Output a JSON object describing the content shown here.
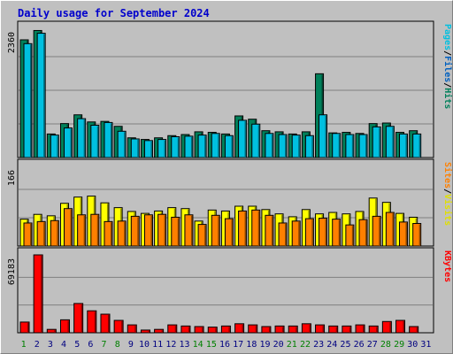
{
  "title": "Daily usage for September 2024",
  "chart_data": [
    {
      "type": "bar",
      "panel": "hits-files-pages",
      "ymax_label": "2360",
      "ymax": 2360,
      "right_label": [
        "Pages",
        "/",
        "Files",
        "/",
        "Hits"
      ],
      "right_label_colors": [
        "#00c0e0",
        "#000000",
        "#0060c0",
        "#000000",
        "#00805a"
      ],
      "series": [
        {
          "name": "Hits",
          "color": "#00805a",
          "values": [
            2150,
            2320,
            430,
            620,
            780,
            650,
            660,
            570,
            360,
            330,
            360,
            400,
            420,
            470,
            460,
            430,
            760,
            700,
            490,
            470,
            430,
            470,
            1530,
            450,
            460,
            440,
            620,
            630,
            460,
            490
          ]
        },
        {
          "name": "Files",
          "color": "#00c0e0",
          "values": [
            2080,
            2270,
            410,
            540,
            710,
            590,
            640,
            480,
            340,
            310,
            330,
            380,
            390,
            410,
            440,
            400,
            680,
            610,
            440,
            420,
            410,
            400,
            780,
            440,
            420,
            420,
            560,
            570,
            430,
            430
          ]
        },
        {
          "name": "Pages",
          "color": "#00c0e0",
          "values": []
        }
      ]
    },
    {
      "type": "bar",
      "panel": "visits-sites",
      "ymax_label": "166",
      "ymax": 166,
      "right_label": [
        "Sites",
        "/",
        "Visits"
      ],
      "right_label_colors": [
        "#ff8000",
        "#000000",
        "#e0e000"
      ],
      "series": [
        {
          "name": "Visits",
          "color": "#ffff00",
          "values": [
            56,
            66,
            63,
            89,
            102,
            104,
            90,
            80,
            72,
            68,
            73,
            80,
            78,
            52,
            75,
            73,
            83,
            83,
            76,
            67,
            61,
            76,
            67,
            70,
            67,
            72,
            100,
            91,
            68,
            60
          ]
        },
        {
          "name": "Sites",
          "color": "#ff8000",
          "values": [
            48,
            51,
            53,
            78,
            65,
            66,
            51,
            52,
            62,
            65,
            66,
            60,
            65,
            45,
            64,
            57,
            73,
            75,
            64,
            48,
            52,
            57,
            58,
            56,
            44,
            55,
            62,
            70,
            50,
            47
          ]
        }
      ]
    },
    {
      "type": "bar",
      "panel": "kbytes",
      "ymax_label": "69183",
      "ymax": 69183,
      "right_label": [
        "KBytes"
      ],
      "right_label_colors": [
        "#ff0000"
      ],
      "series": [
        {
          "name": "KBytes",
          "color": "#ff0000",
          "values": [
            9500,
            69183,
            3000,
            11500,
            26000,
            19500,
            16500,
            11000,
            7000,
            2400,
            3000,
            7000,
            6000,
            5500,
            5000,
            6000,
            8000,
            7000,
            5500,
            6000,
            6000,
            8000,
            7000,
            6000,
            6000,
            7000,
            6000,
            10000,
            11000,
            5500
          ]
        }
      ]
    }
  ],
  "x_labels": [
    "1",
    "2",
    "3",
    "4",
    "5",
    "6",
    "7",
    "8",
    "9",
    "10",
    "11",
    "12",
    "13",
    "14",
    "15",
    "16",
    "17",
    "18",
    "19",
    "20",
    "21",
    "22",
    "23",
    "24",
    "25",
    "26",
    "27",
    "28",
    "29",
    "30",
    "31"
  ],
  "x_label_colors": [
    "#008000",
    "#000080",
    "#000080",
    "#000080",
    "#000080",
    "#000080",
    "#008000",
    "#008000",
    "#000080",
    "#000080",
    "#000080",
    "#000080",
    "#000080",
    "#008000",
    "#008000",
    "#000080",
    "#000080",
    "#000080",
    "#000080",
    "#000080",
    "#008000",
    "#008000",
    "#000080",
    "#000080",
    "#000080",
    "#000080",
    "#000080",
    "#008000",
    "#008000",
    "#000080",
    "#000080"
  ]
}
